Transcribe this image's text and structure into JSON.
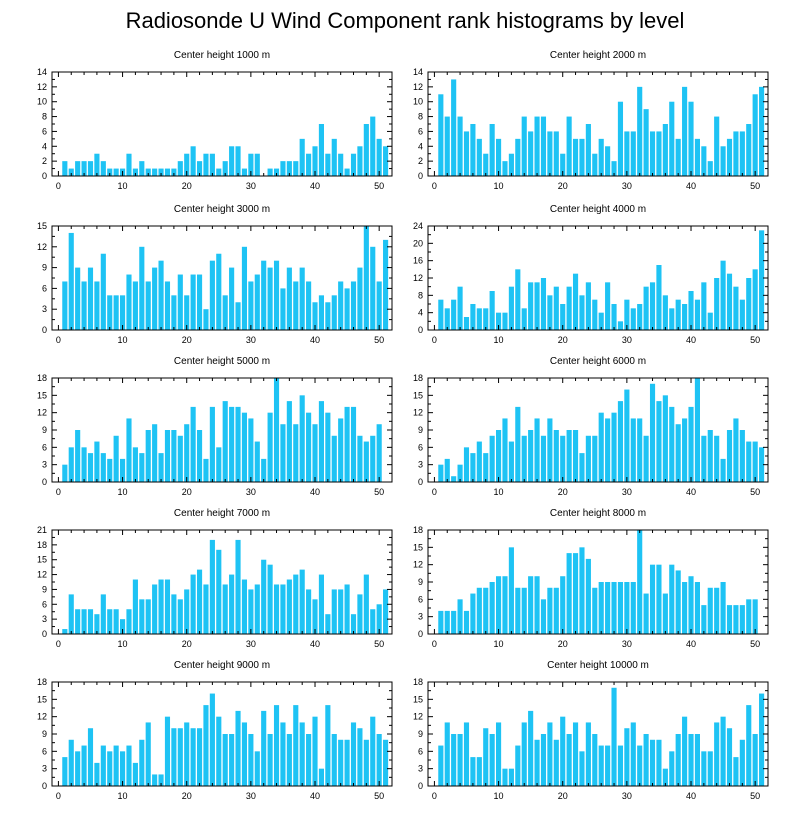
{
  "title": "Radiosonde U Wind Component rank histograms by level",
  "colors": {
    "bar": "#1ec3f4",
    "frame": "#000000"
  },
  "chart_data": [
    {
      "type": "bar",
      "title": "Center height 1000 m",
      "xlim": [
        -1,
        52
      ],
      "ylim": [
        0,
        14
      ],
      "yticks": [
        0,
        2,
        4,
        6,
        8,
        10,
        12,
        14
      ],
      "xticks": [
        0,
        10,
        20,
        30,
        40,
        50
      ],
      "x": [
        1,
        2,
        3,
        4,
        5,
        6,
        7,
        8,
        9,
        10,
        11,
        12,
        13,
        14,
        15,
        16,
        17,
        18,
        19,
        20,
        21,
        22,
        23,
        24,
        25,
        26,
        27,
        28,
        29,
        30,
        31,
        32,
        33,
        34,
        35,
        36,
        37,
        38,
        39,
        40,
        41,
        42,
        43,
        44,
        45,
        46,
        47,
        48,
        49,
        50,
        51
      ],
      "values": [
        2,
        1,
        2,
        2,
        2,
        3,
        2,
        1,
        1,
        1,
        3,
        1,
        2,
        1,
        1,
        1,
        1,
        1,
        2,
        3,
        4,
        2,
        3,
        3,
        1,
        2,
        4,
        4,
        1,
        3,
        3,
        0,
        1,
        1,
        2,
        2,
        2,
        5,
        3,
        4,
        7,
        3,
        5,
        3,
        1,
        3,
        4,
        7,
        8,
        5,
        4
      ]
    },
    {
      "type": "bar",
      "title": "Center height 2000 m",
      "xlim": [
        -1,
        52
      ],
      "ylim": [
        0,
        14
      ],
      "yticks": [
        0,
        2,
        4,
        6,
        8,
        10,
        12,
        14
      ],
      "xticks": [
        0,
        10,
        20,
        30,
        40,
        50
      ],
      "x": [
        1,
        2,
        3,
        4,
        5,
        6,
        7,
        8,
        9,
        10,
        11,
        12,
        13,
        14,
        15,
        16,
        17,
        18,
        19,
        20,
        21,
        22,
        23,
        24,
        25,
        26,
        27,
        28,
        29,
        30,
        31,
        32,
        33,
        34,
        35,
        36,
        37,
        38,
        39,
        40,
        41,
        42,
        43,
        44,
        45,
        46,
        47,
        48,
        49,
        50,
        51
      ],
      "values": [
        11,
        8,
        13,
        8,
        6,
        7,
        5,
        3,
        7,
        5,
        2,
        3,
        5,
        8,
        6,
        8,
        8,
        6,
        6,
        3,
        8,
        5,
        5,
        7,
        3,
        5,
        4,
        2,
        10,
        6,
        6,
        12,
        9,
        6,
        6,
        7,
        10,
        5,
        12,
        10,
        5,
        4,
        2,
        8,
        4,
        5,
        6,
        6,
        7,
        11,
        12
      ]
    },
    {
      "type": "bar",
      "title": "Center height 3000 m",
      "xlim": [
        -1,
        52
      ],
      "ylim": [
        0,
        15
      ],
      "yticks": [
        0,
        3,
        6,
        9,
        12,
        15
      ],
      "xticks": [
        0,
        10,
        20,
        30,
        40,
        50
      ],
      "x": [
        1,
        2,
        3,
        4,
        5,
        6,
        7,
        8,
        9,
        10,
        11,
        12,
        13,
        14,
        15,
        16,
        17,
        18,
        19,
        20,
        21,
        22,
        23,
        24,
        25,
        26,
        27,
        28,
        29,
        30,
        31,
        32,
        33,
        34,
        35,
        36,
        37,
        38,
        39,
        40,
        41,
        42,
        43,
        44,
        45,
        46,
        47,
        48,
        49,
        50,
        51
      ],
      "values": [
        7,
        14,
        9,
        7,
        9,
        7,
        11,
        5,
        5,
        5,
        8,
        7,
        12,
        7,
        9,
        10,
        7,
        5,
        8,
        5,
        8,
        8,
        3,
        10,
        11,
        5,
        9,
        4,
        12,
        7,
        8,
        10,
        9,
        10,
        6,
        9,
        7,
        9,
        7,
        4,
        5,
        4,
        5,
        7,
        6,
        7,
        9,
        15,
        12,
        7,
        13
      ]
    },
    {
      "type": "bar",
      "title": "Center height 4000 m",
      "xlim": [
        -1,
        52
      ],
      "ylim": [
        0,
        24
      ],
      "yticks": [
        0,
        4,
        8,
        12,
        16,
        20,
        24
      ],
      "xticks": [
        0,
        10,
        20,
        30,
        40,
        50
      ],
      "x": [
        1,
        2,
        3,
        4,
        5,
        6,
        7,
        8,
        9,
        10,
        11,
        12,
        13,
        14,
        15,
        16,
        17,
        18,
        19,
        20,
        21,
        22,
        23,
        24,
        25,
        26,
        27,
        28,
        29,
        30,
        31,
        32,
        33,
        34,
        35,
        36,
        37,
        38,
        39,
        40,
        41,
        42,
        43,
        44,
        45,
        46,
        47,
        48,
        49,
        50,
        51
      ],
      "values": [
        7,
        5,
        7,
        10,
        3,
        6,
        5,
        5,
        9,
        4,
        4,
        10,
        14,
        5,
        11,
        11,
        12,
        8,
        10,
        6,
        10,
        13,
        8,
        11,
        7,
        4,
        11,
        6,
        2,
        7,
        5,
        6,
        10,
        11,
        15,
        8,
        5,
        7,
        6,
        9,
        7,
        11,
        4,
        12,
        16,
        13,
        10,
        7,
        12,
        14,
        23
      ]
    },
    {
      "type": "bar",
      "title": "Center height 5000 m",
      "xlim": [
        -1,
        52
      ],
      "ylim": [
        0,
        18
      ],
      "yticks": [
        0,
        3,
        6,
        9,
        12,
        15,
        18
      ],
      "xticks": [
        0,
        10,
        20,
        30,
        40,
        50
      ],
      "x": [
        1,
        2,
        3,
        4,
        5,
        6,
        7,
        8,
        9,
        10,
        11,
        12,
        13,
        14,
        15,
        16,
        17,
        18,
        19,
        20,
        21,
        22,
        23,
        24,
        25,
        26,
        27,
        28,
        29,
        30,
        31,
        32,
        33,
        34,
        35,
        36,
        37,
        38,
        39,
        40,
        41,
        42,
        43,
        44,
        45,
        46,
        47,
        48,
        49,
        50,
        51
      ],
      "values": [
        3,
        6,
        9,
        6,
        5,
        7,
        5,
        4,
        8,
        4,
        11,
        6,
        5,
        9,
        10,
        5,
        9,
        9,
        8,
        10,
        13,
        9,
        4,
        13,
        6,
        14,
        13,
        13,
        12,
        11,
        7,
        4,
        12,
        18,
        10,
        14,
        10,
        15,
        12,
        10,
        14,
        12,
        8,
        11,
        13,
        13,
        8,
        7,
        8,
        10,
        0
      ]
    },
    {
      "type": "bar",
      "title": "Center height 6000 m",
      "xlim": [
        -1,
        52
      ],
      "ylim": [
        0,
        18
      ],
      "yticks": [
        0,
        3,
        6,
        9,
        12,
        15,
        18
      ],
      "xticks": [
        0,
        10,
        20,
        30,
        40,
        50
      ],
      "x": [
        1,
        2,
        3,
        4,
        5,
        6,
        7,
        8,
        9,
        10,
        11,
        12,
        13,
        14,
        15,
        16,
        17,
        18,
        19,
        20,
        21,
        22,
        23,
        24,
        25,
        26,
        27,
        28,
        29,
        30,
        31,
        32,
        33,
        34,
        35,
        36,
        37,
        38,
        39,
        40,
        41,
        42,
        43,
        44,
        45,
        46,
        47,
        48,
        49,
        50,
        51
      ],
      "values": [
        3,
        4,
        1,
        3,
        6,
        5,
        7,
        5,
        8,
        9,
        11,
        7,
        13,
        8,
        9,
        11,
        8,
        11,
        9,
        8,
        9,
        9,
        5,
        8,
        8,
        12,
        11,
        12,
        14,
        16,
        11,
        11,
        8,
        17,
        14,
        15,
        13,
        10,
        11,
        13,
        18,
        8,
        9,
        8,
        4,
        9,
        11,
        9,
        7,
        7,
        6
      ]
    },
    {
      "type": "bar",
      "title": "Center height 7000 m",
      "xlim": [
        -1,
        52
      ],
      "ylim": [
        0,
        21
      ],
      "yticks": [
        0,
        3,
        6,
        9,
        12,
        15,
        18,
        21
      ],
      "xticks": [
        0,
        10,
        20,
        30,
        40,
        50
      ],
      "x": [
        1,
        2,
        3,
        4,
        5,
        6,
        7,
        8,
        9,
        10,
        11,
        12,
        13,
        14,
        15,
        16,
        17,
        18,
        19,
        20,
        21,
        22,
        23,
        24,
        25,
        26,
        27,
        28,
        29,
        30,
        31,
        32,
        33,
        34,
        35,
        36,
        37,
        38,
        39,
        40,
        41,
        42,
        43,
        44,
        45,
        46,
        47,
        48,
        49,
        50,
        51
      ],
      "values": [
        1,
        8,
        5,
        5,
        5,
        4,
        8,
        5,
        5,
        3,
        5,
        11,
        7,
        7,
        10,
        11,
        11,
        8,
        7,
        9,
        12,
        13,
        10,
        19,
        17,
        10,
        12,
        19,
        11,
        9,
        10,
        15,
        14,
        10,
        10,
        11,
        12,
        13,
        9,
        7,
        12,
        4,
        9,
        9,
        10,
        4,
        8,
        12,
        5,
        6,
        9
      ]
    },
    {
      "type": "bar",
      "title": "Center height 8000 m",
      "xlim": [
        -1,
        52
      ],
      "ylim": [
        0,
        18
      ],
      "yticks": [
        0,
        3,
        6,
        9,
        12,
        15,
        18
      ],
      "xticks": [
        0,
        10,
        20,
        30,
        40,
        50
      ],
      "x": [
        1,
        2,
        3,
        4,
        5,
        6,
        7,
        8,
        9,
        10,
        11,
        12,
        13,
        14,
        15,
        16,
        17,
        18,
        19,
        20,
        21,
        22,
        23,
        24,
        25,
        26,
        27,
        28,
        29,
        30,
        31,
        32,
        33,
        34,
        35,
        36,
        37,
        38,
        39,
        40,
        41,
        42,
        43,
        44,
        45,
        46,
        47,
        48,
        49,
        50,
        51
      ],
      "values": [
        4,
        4,
        4,
        6,
        4,
        7,
        8,
        8,
        9,
        10,
        10,
        15,
        8,
        8,
        10,
        10,
        6,
        8,
        8,
        10,
        14,
        14,
        15,
        13,
        8,
        9,
        9,
        9,
        9,
        9,
        9,
        18,
        7,
        12,
        12,
        7,
        12,
        11,
        9,
        10,
        9,
        5,
        8,
        8,
        9,
        5,
        5,
        5,
        6,
        6,
        0
      ]
    },
    {
      "type": "bar",
      "title": "Center height 9000 m",
      "xlim": [
        -1,
        52
      ],
      "ylim": [
        0,
        18
      ],
      "yticks": [
        0,
        3,
        6,
        9,
        12,
        15,
        18
      ],
      "xticks": [
        0,
        10,
        20,
        30,
        40,
        50
      ],
      "x": [
        1,
        2,
        3,
        4,
        5,
        6,
        7,
        8,
        9,
        10,
        11,
        12,
        13,
        14,
        15,
        16,
        17,
        18,
        19,
        20,
        21,
        22,
        23,
        24,
        25,
        26,
        27,
        28,
        29,
        30,
        31,
        32,
        33,
        34,
        35,
        36,
        37,
        38,
        39,
        40,
        41,
        42,
        43,
        44,
        45,
        46,
        47,
        48,
        49,
        50,
        51
      ],
      "values": [
        5,
        8,
        6,
        7,
        10,
        4,
        7,
        6,
        7,
        6,
        7,
        4,
        8,
        11,
        2,
        2,
        12,
        10,
        10,
        11,
        10,
        10,
        14,
        16,
        12,
        9,
        9,
        13,
        11,
        9,
        6,
        13,
        9,
        14,
        11,
        9,
        14,
        11,
        9,
        12,
        3,
        14,
        9,
        8,
        8,
        11,
        10,
        8,
        12,
        9,
        8
      ]
    },
    {
      "type": "bar",
      "title": "Center height 10000 m",
      "xlim": [
        -1,
        52
      ],
      "ylim": [
        0,
        18
      ],
      "yticks": [
        0,
        3,
        6,
        9,
        12,
        15,
        18
      ],
      "xticks": [
        0,
        10,
        20,
        30,
        40,
        50
      ],
      "x": [
        1,
        2,
        3,
        4,
        5,
        6,
        7,
        8,
        9,
        10,
        11,
        12,
        13,
        14,
        15,
        16,
        17,
        18,
        19,
        20,
        21,
        22,
        23,
        24,
        25,
        26,
        27,
        28,
        29,
        30,
        31,
        32,
        33,
        34,
        35,
        36,
        37,
        38,
        39,
        40,
        41,
        42,
        43,
        44,
        45,
        46,
        47,
        48,
        49,
        50,
        51
      ],
      "values": [
        7,
        11,
        9,
        9,
        11,
        5,
        5,
        10,
        9,
        11,
        3,
        3,
        7,
        11,
        13,
        8,
        9,
        11,
        8,
        12,
        9,
        11,
        6,
        11,
        9,
        7,
        7,
        17,
        7,
        10,
        11,
        7,
        9,
        8,
        8,
        3,
        6,
        9,
        12,
        9,
        9,
        6,
        6,
        11,
        12,
        10,
        5,
        8,
        14,
        9,
        16
      ]
    }
  ]
}
